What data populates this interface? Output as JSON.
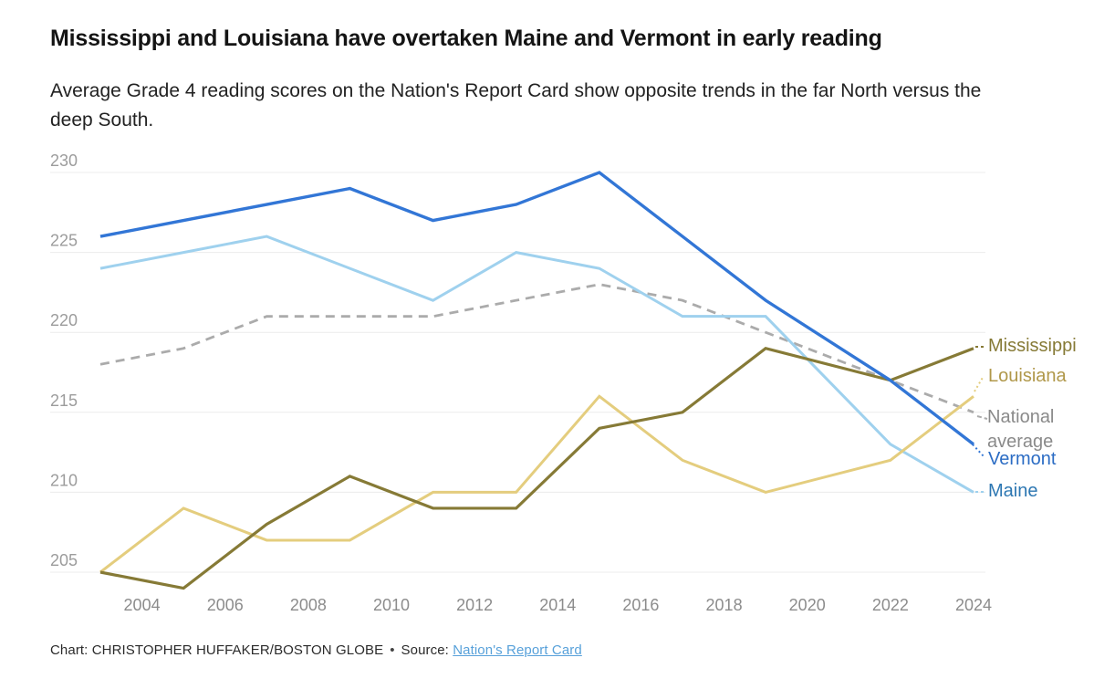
{
  "header": {
    "title": "Mississippi and Louisiana have overtaken Maine and Vermont in early reading",
    "subtitle": "Average Grade 4 reading scores on the Nation's Report Card show opposite trends in the far North versus the deep South."
  },
  "chart_data": {
    "type": "line",
    "x_years": [
      2003,
      2005,
      2007,
      2009,
      2011,
      2013,
      2015,
      2017,
      2019,
      2022,
      2024
    ],
    "x_tick_labels": [
      "2004",
      "2006",
      "2008",
      "2010",
      "2012",
      "2014",
      "2016",
      "2018",
      "2020",
      "2022",
      "2024"
    ],
    "y_ticks": [
      205,
      210,
      215,
      220,
      225,
      230
    ],
    "y_range": [
      203.5,
      231
    ],
    "grid": "horizontal",
    "legend_position": "right-edge labels",
    "series": [
      {
        "name": "National average",
        "label": "National average",
        "style": "dashed",
        "color": "#ababab",
        "label_color": "#8a8a8a",
        "values": [
          218,
          219,
          221,
          221,
          221,
          222,
          223,
          222,
          220,
          217,
          215
        ]
      },
      {
        "name": "Maine",
        "label": "Maine",
        "style": "solid",
        "color": "#9fd1ee",
        "label_color": "#2d77b2",
        "values": [
          224,
          225,
          226,
          224,
          222,
          225,
          224,
          221,
          221,
          213,
          210
        ]
      },
      {
        "name": "Louisiana",
        "label": "Louisiana",
        "style": "solid",
        "color": "#e4cd7e",
        "label_color": "#b0984a",
        "values": [
          205,
          209,
          207,
          207,
          210,
          210,
          216,
          212,
          210,
          212,
          216
        ]
      },
      {
        "name": "Mississippi",
        "label": "Mississippi",
        "style": "solid",
        "color": "#867a36",
        "label_color": "#867a36",
        "values": [
          205,
          204,
          208,
          211,
          209,
          209,
          214,
          215,
          219,
          217,
          219
        ]
      },
      {
        "name": "Vermont",
        "label": "Vermont",
        "style": "solid",
        "color": "#3276d6",
        "label_color": "#2b6cc4",
        "values": [
          226,
          227,
          228,
          229,
          227,
          228,
          230,
          226,
          222,
          217,
          213
        ]
      }
    ]
  },
  "footer": {
    "credit": "Chart: CHRISTOPHER HUFFAKER/BOSTON GLOBE",
    "separator": "•",
    "source_label": "Source:",
    "source_link_text": "Nation's Report Card"
  }
}
